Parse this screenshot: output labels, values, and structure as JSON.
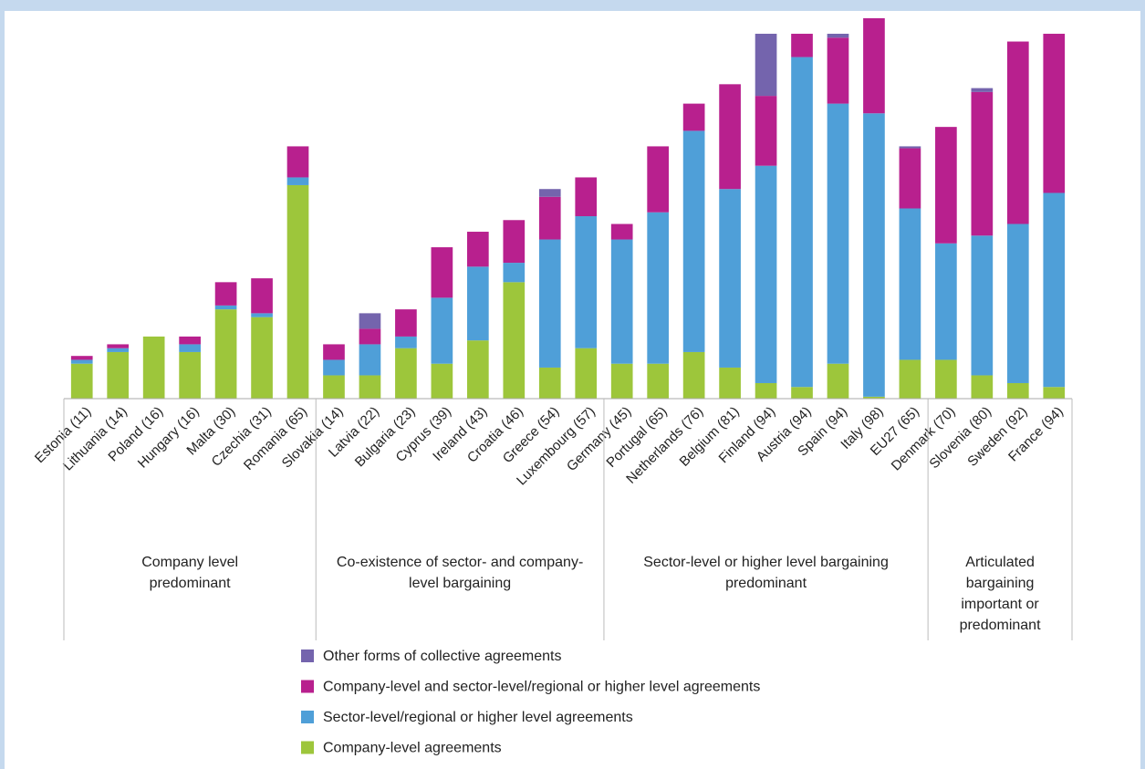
{
  "chart_data": {
    "type": "stacked_bar",
    "groups": [
      {
        "label": "Company level predominant",
        "categories": [
          "Estonia (11)",
          "Lithuania (14)",
          "Poland (16)",
          "Hungary (16)",
          "Malta (30)",
          "Czechia (31)",
          "Romania (65)"
        ]
      },
      {
        "label": "Co-existence of sector- and company-level bargaining",
        "categories": [
          "Slovakia (14)",
          "Latvia (22)",
          "Bulgaria (23)",
          "Cyprus (39)",
          "Ireland (43)",
          "Croatia (46)",
          "Greece (54)",
          "Luxembourg (57)"
        ]
      },
      {
        "label": "Sector-level or higher level bargaining predominant",
        "categories": [
          "Germany (45)",
          "Portugal (65)",
          "Netherlands (76)",
          "Belgium (81)",
          "Finland (94)",
          "Austria (94)",
          "Spain (94)",
          "Italy (98)",
          "EU27 (65)"
        ]
      },
      {
        "label": "Articulated bargaining important or predominant",
        "categories": [
          "Denmark (70)",
          "Slovenia (80)",
          "Sweden (92)",
          "France (94)"
        ]
      }
    ],
    "series": [
      {
        "name": "Other forms of collective agreements",
        "color": "#7464ad",
        "values": [
          0,
          0,
          0,
          0,
          0,
          0,
          0,
          0,
          4,
          0,
          0,
          0,
          0,
          2,
          0,
          0,
          0,
          0,
          0,
          16,
          0,
          1,
          0,
          0.5,
          0,
          1,
          0,
          0
        ]
      },
      {
        "name": "Company-level and sector-level/regional or higher level agreements",
        "color": "#b8208e",
        "values": [
          1,
          1,
          0,
          2,
          6,
          9,
          8,
          4,
          4,
          7,
          13,
          9,
          11,
          11,
          10,
          4,
          17,
          7,
          27,
          18,
          6,
          17,
          24.5,
          15.5,
          30,
          37,
          47,
          41
        ]
      },
      {
        "name": "Sector-level/regional or higher level agreements",
        "color": "#4f9fd8",
        "values": [
          1,
          1,
          0,
          2,
          1,
          1,
          2,
          4,
          8,
          3,
          17,
          19,
          5,
          33,
          34,
          32,
          39,
          57,
          46,
          56,
          85,
          67,
          73,
          39,
          30,
          36,
          41,
          50
        ]
      },
      {
        "name": "Company-level agreements",
        "color": "#9dc63b",
        "values": [
          9,
          12,
          16,
          12,
          23,
          21,
          55,
          6,
          6,
          13,
          9,
          15,
          30,
          8,
          13,
          9,
          9,
          12,
          8,
          4,
          3,
          9,
          0.5,
          10,
          10,
          6,
          4,
          3
        ]
      }
    ]
  }
}
